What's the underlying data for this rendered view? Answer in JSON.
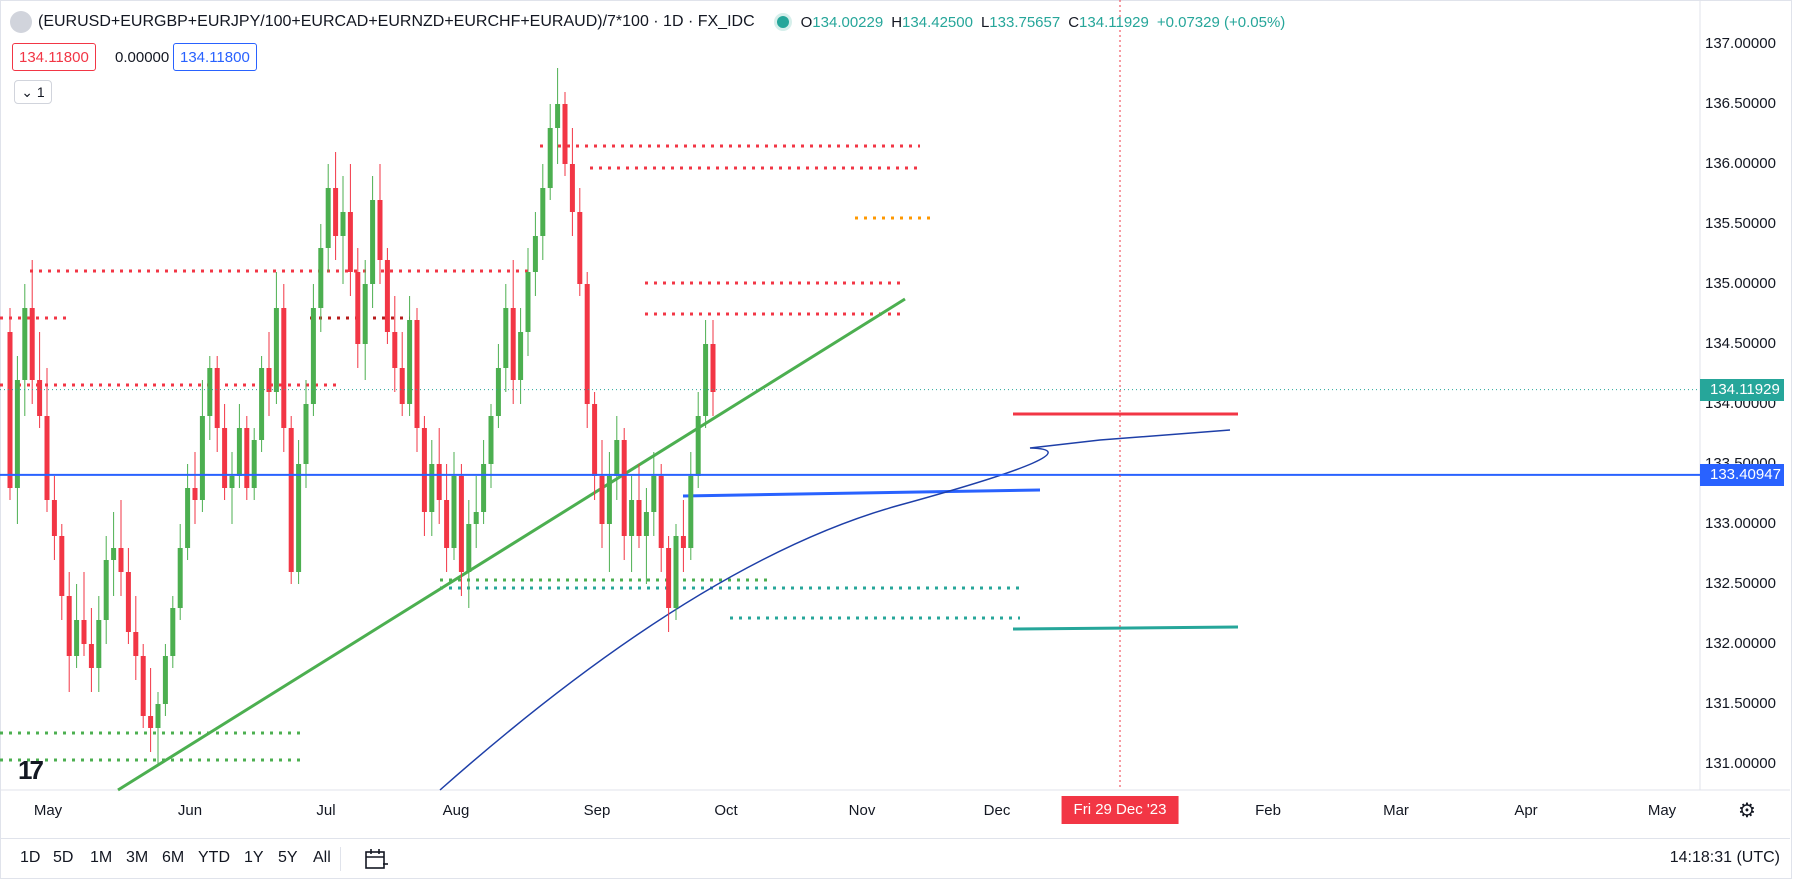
{
  "legend": {
    "symbol": "(EURUSD+EURGBP+EURJPY/100+EURCAD+EURNZD+EURCHF+EURAUD)/7*100 · 1D · FX_IDC",
    "o_label": "O",
    "o_value": "134.00229",
    "h_label": "H",
    "h_value": "134.42500",
    "l_label": "L",
    "l_value": "133.75657",
    "c_label": "C",
    "c_value": "134.11929",
    "change": "+0.07329 (+0.05%)"
  },
  "price_boxes": {
    "sell": "134.11800",
    "spread": "0.00000",
    "buy": "134.11800"
  },
  "indicator_toggle": "1",
  "y_axis": {
    "labels": [
      "137.00000",
      "136.50000",
      "136.00000",
      "135.50000",
      "135.00000",
      "134.50000",
      "134.00000",
      "133.50000",
      "133.00000",
      "132.50000",
      "132.00000",
      "131.50000",
      "131.00000"
    ],
    "last_price": "134.11929",
    "line_price": "133.40947",
    "colors": {
      "last": "#26a69a",
      "line": "#2962ff"
    }
  },
  "x_axis": {
    "labels": [
      "May",
      "Jun",
      "Jul",
      "Aug",
      "Sep",
      "Oct",
      "Nov",
      "Dec",
      "Feb",
      "Mar",
      "Apr",
      "May"
    ],
    "crosshair_date": "Fri 29 Dec '23"
  },
  "timeframes": [
    "1D",
    "5D",
    "1M",
    "3M",
    "6M",
    "YTD",
    "1Y",
    "5Y",
    "All"
  ],
  "clock": "14:18:31 (UTC)",
  "colors": {
    "up": "#4caf50",
    "down": "#f23645",
    "accent": "#2962ff"
  },
  "chart_data": {
    "type": "candlestick",
    "title": "(EURUSD+EURGBP+EURJPY/100+EURCAD+EURNZD+EURCHF+EURAUD)/7*100 · 1D · FX_IDC",
    "ylim": [
      130.6,
      137.3
    ],
    "x_range": [
      "2023-04-24",
      "2024-05-20"
    ],
    "grid": false,
    "candles": [
      [
        134.6,
        134.8,
        133.2,
        133.3
      ],
      [
        133.3,
        134.4,
        133.0,
        134.2
      ],
      [
        134.2,
        135.0,
        133.9,
        134.8
      ],
      [
        134.8,
        135.2,
        134.0,
        134.2
      ],
      [
        134.2,
        134.6,
        133.8,
        133.9
      ],
      [
        133.9,
        134.3,
        133.1,
        133.2
      ],
      [
        133.2,
        133.4,
        132.7,
        132.9
      ],
      [
        132.9,
        133.0,
        132.2,
        132.4
      ],
      [
        132.4,
        132.6,
        131.6,
        131.9
      ],
      [
        131.9,
        132.5,
        131.8,
        132.2
      ],
      [
        132.2,
        132.6,
        131.9,
        132.0
      ],
      [
        132.0,
        132.3,
        131.6,
        131.8
      ],
      [
        131.8,
        132.4,
        131.6,
        132.2
      ],
      [
        132.2,
        132.9,
        132.0,
        132.7
      ],
      [
        132.7,
        133.1,
        132.4,
        132.8
      ],
      [
        132.8,
        133.2,
        132.4,
        132.6
      ],
      [
        132.6,
        132.8,
        132.0,
        132.1
      ],
      [
        132.1,
        132.4,
        131.7,
        131.9
      ],
      [
        131.9,
        132.0,
        131.3,
        131.4
      ],
      [
        131.4,
        131.8,
        131.1,
        131.3
      ],
      [
        131.3,
        131.6,
        131.0,
        131.5
      ],
      [
        131.5,
        132.0,
        131.4,
        131.9
      ],
      [
        131.9,
        132.4,
        131.8,
        132.3
      ],
      [
        132.3,
        133.0,
        132.2,
        132.8
      ],
      [
        132.8,
        133.5,
        132.7,
        133.3
      ],
      [
        133.3,
        133.6,
        133.0,
        133.2
      ],
      [
        133.2,
        134.2,
        133.1,
        133.9
      ],
      [
        133.9,
        134.4,
        133.7,
        134.3
      ],
      [
        134.3,
        134.4,
        133.6,
        133.8
      ],
      [
        133.8,
        134.0,
        133.2,
        133.3
      ],
      [
        133.3,
        133.6,
        133.0,
        133.4
      ],
      [
        133.4,
        134.0,
        133.3,
        133.8
      ],
      [
        133.8,
        133.9,
        133.2,
        133.3
      ],
      [
        133.3,
        133.8,
        133.2,
        133.7
      ],
      [
        133.7,
        134.4,
        133.6,
        134.3
      ],
      [
        134.3,
        134.6,
        133.9,
        134.1
      ],
      [
        134.1,
        135.1,
        134.0,
        134.8
      ],
      [
        134.8,
        135.0,
        133.6,
        133.8
      ],
      [
        133.8,
        133.9,
        132.5,
        132.6
      ],
      [
        132.6,
        133.7,
        132.5,
        133.5
      ],
      [
        133.5,
        134.2,
        133.3,
        134.0
      ],
      [
        134.0,
        135.0,
        133.9,
        134.8
      ],
      [
        134.8,
        135.5,
        134.6,
        135.3
      ],
      [
        135.3,
        136.0,
        135.1,
        135.8
      ],
      [
        135.8,
        136.1,
        135.2,
        135.4
      ],
      [
        135.4,
        135.9,
        135.0,
        135.6
      ],
      [
        135.6,
        136.0,
        134.9,
        135.1
      ],
      [
        135.1,
        135.3,
        134.3,
        134.5
      ],
      [
        134.5,
        135.2,
        134.2,
        135.0
      ],
      [
        135.0,
        135.9,
        134.8,
        135.7
      ],
      [
        135.7,
        136.0,
        135.0,
        135.2
      ],
      [
        135.2,
        135.3,
        134.5,
        134.6
      ],
      [
        134.6,
        134.9,
        134.1,
        134.3
      ],
      [
        134.3,
        134.6,
        133.9,
        134.0
      ],
      [
        134.0,
        134.9,
        133.9,
        134.7
      ],
      [
        134.7,
        134.8,
        133.6,
        133.8
      ],
      [
        133.8,
        133.9,
        132.9,
        133.1
      ],
      [
        133.1,
        133.7,
        132.9,
        133.5
      ],
      [
        133.5,
        133.8,
        133.0,
        133.2
      ],
      [
        133.2,
        133.5,
        132.6,
        132.8
      ],
      [
        132.8,
        133.6,
        132.7,
        133.4
      ],
      [
        133.4,
        133.5,
        132.4,
        132.6
      ],
      [
        132.6,
        133.2,
        132.3,
        133.0
      ],
      [
        133.0,
        133.4,
        132.8,
        133.1
      ],
      [
        133.1,
        133.7,
        133.0,
        133.5
      ],
      [
        133.5,
        134.0,
        133.3,
        133.9
      ],
      [
        133.9,
        134.5,
        133.8,
        134.3
      ],
      [
        134.3,
        135.0,
        134.1,
        134.8
      ],
      [
        134.8,
        135.2,
        134.0,
        134.2
      ],
      [
        134.2,
        134.8,
        134.0,
        134.6
      ],
      [
        134.6,
        135.3,
        134.4,
        135.1
      ],
      [
        135.1,
        135.6,
        134.9,
        135.4
      ],
      [
        135.4,
        136.0,
        135.2,
        135.8
      ],
      [
        135.8,
        136.5,
        135.7,
        136.3
      ],
      [
        136.3,
        136.8,
        136.0,
        136.5
      ],
      [
        136.5,
        136.6,
        135.9,
        136.0
      ],
      [
        136.0,
        136.3,
        135.4,
        135.6
      ],
      [
        135.6,
        135.8,
        134.9,
        135.0
      ],
      [
        135.0,
        135.1,
        133.8,
        134.0
      ],
      [
        134.0,
        134.1,
        133.2,
        133.4
      ],
      [
        133.4,
        133.7,
        132.8,
        133.0
      ],
      [
        133.0,
        133.6,
        132.6,
        133.4
      ],
      [
        133.4,
        133.9,
        133.2,
        133.7
      ],
      [
        133.7,
        133.8,
        132.7,
        132.9
      ],
      [
        132.9,
        133.4,
        132.6,
        133.2
      ],
      [
        133.2,
        133.5,
        132.8,
        132.9
      ],
      [
        132.9,
        133.3,
        132.5,
        133.1
      ],
      [
        133.1,
        133.6,
        132.9,
        133.4
      ],
      [
        133.4,
        133.5,
        132.6,
        132.8
      ],
      [
        132.8,
        132.9,
        132.1,
        132.3
      ],
      [
        132.3,
        133.0,
        132.2,
        132.9
      ],
      [
        132.9,
        133.2,
        132.6,
        132.8
      ],
      [
        132.8,
        133.6,
        132.7,
        133.4
      ],
      [
        133.4,
        134.1,
        133.3,
        133.9
      ],
      [
        133.9,
        134.7,
        133.8,
        134.5
      ],
      [
        134.5,
        134.7,
        133.9,
        134.1
      ]
    ],
    "horizontal_levels": [
      133.40947
    ],
    "annotations": []
  }
}
